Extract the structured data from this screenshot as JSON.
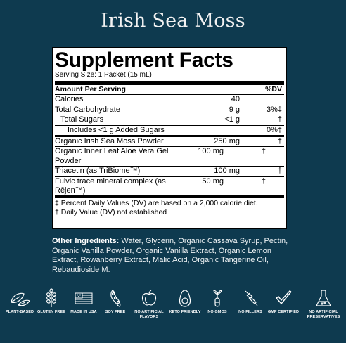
{
  "title": "Irish Sea Moss",
  "facts": {
    "heading": "Supplement Facts",
    "serving": "Serving Size: 1 Packet (15 mL)",
    "header": {
      "label": "Amount Per Serving",
      "dv": "%DV"
    },
    "rows1": [
      {
        "name": "Calories",
        "amount": "40",
        "dv": ""
      },
      {
        "name": "Total Carbohydrate",
        "amount": "9 g",
        "dv": "3%‡"
      },
      {
        "name": "Total Sugars",
        "amount": "<1 g",
        "dv": "†"
      },
      {
        "name": "Includes <1 g Added Sugars",
        "amount": "",
        "dv": "0%‡"
      }
    ],
    "rows2": [
      {
        "name": "Organic Irish Sea Moss Powder",
        "amount": "250 mg",
        "dv": "†"
      },
      {
        "name": "Organic Inner Leaf Aloe Vera Gel Powder",
        "amount": "100 mg",
        "dv": "†"
      },
      {
        "name": "Triacetin (as TriBiome™)",
        "amount": "100 mg",
        "dv": "†"
      },
      {
        "name": "Fulvic trace mineral complex (as Rējen™)",
        "amount": "50 mg",
        "dv": "†"
      }
    ],
    "note1": "‡ Percent Daily Values (DV) are based on a 2,000 calorie diet.",
    "note2": "† Daily Value (DV) not established"
  },
  "ingredients": {
    "label": "Other Ingredients:",
    "text": " Water, Glycerin, Organic Cassava Syrup, Pectin, Organic Vanilla Powder, Organic Vanilla Extract, Organic Lemon Extract, Rowanberry Extract, Malic Acid, Organic Tangerine Oil, Rebaudioside M."
  },
  "badges": [
    {
      "icon": "leaves-icon",
      "label": "PLANT-BASED"
    },
    {
      "icon": "wheat-icon",
      "label": "GLUTEN FREE"
    },
    {
      "icon": "flag-icon",
      "label": "MADE IN USA"
    },
    {
      "icon": "soybean-icon",
      "label": "SOY FREE"
    },
    {
      "icon": "apple-icon",
      "label": "NO ARTIFICIAL FLAVORS"
    },
    {
      "icon": "avocado-icon",
      "label": "KETO FRIENDLY"
    },
    {
      "icon": "sprout-tube-icon",
      "label": "NO GMOS"
    },
    {
      "icon": "dropper-icon",
      "label": "NO FILLERS"
    },
    {
      "icon": "checkmark-icon",
      "label": "GMP CERTIFIED"
    },
    {
      "icon": "flask-icon",
      "label": "NO ARTIFICIAL PRESERVATIVES"
    }
  ],
  "colors": {
    "background": "#0e3a4f",
    "panel": "#ffffff"
  }
}
